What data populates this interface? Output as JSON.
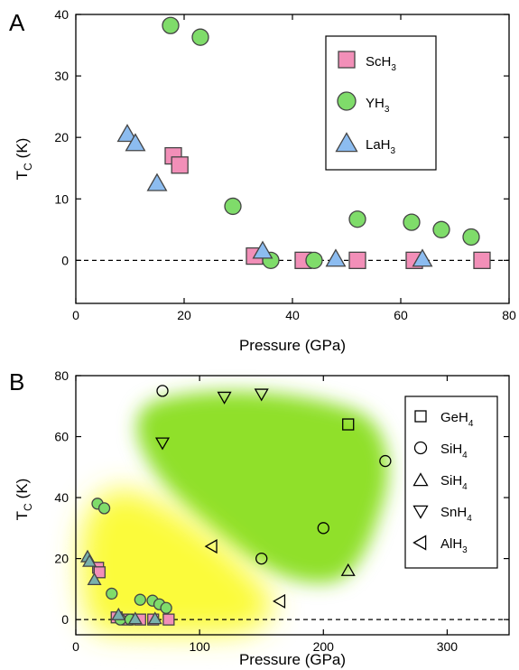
{
  "colors": {
    "sc": "#f28fb8",
    "y": "#7fdc6a",
    "la": "#8cbcf0",
    "la_b": "#79b1ac",
    "glow_green": "#90e02a",
    "glow_yellow": "#fbfb3a"
  },
  "chart_data": [
    {
      "panel": "A",
      "type": "scatter",
      "xlabel": "Pressure (GPa)",
      "ylabel_main": "T",
      "ylabel_sub": "C",
      "ylabel_unit": "(K)",
      "xlim": [
        0,
        80
      ],
      "ylim": [
        -7,
        40
      ],
      "xticks": [
        0,
        20,
        40,
        60,
        80
      ],
      "yticks": [
        0,
        10,
        20,
        30,
        40
      ],
      "reference_line": 0,
      "legend_position": "top-right",
      "series": [
        {
          "key": "sc",
          "name": "ScH",
          "sub": "3",
          "marker": "square",
          "color_key": "sc",
          "points": [
            [
              18,
              17
            ],
            [
              19.2,
              15.5
            ],
            [
              33,
              0.7
            ],
            [
              42,
              0
            ],
            [
              52,
              0
            ],
            [
              62.5,
              0
            ],
            [
              75,
              0
            ]
          ]
        },
        {
          "key": "y",
          "name": "YH",
          "sub": "3",
          "marker": "circle",
          "color_key": "y",
          "points": [
            [
              17.5,
              38.2
            ],
            [
              23,
              36.3
            ],
            [
              29,
              8.8
            ],
            [
              36,
              0
            ],
            [
              44,
              0
            ],
            [
              52,
              6.7
            ],
            [
              62,
              6.2
            ],
            [
              67.5,
              5
            ],
            [
              73,
              3.8
            ]
          ]
        },
        {
          "key": "la",
          "name": "LaH",
          "sub": "3",
          "marker": "triangle-up",
          "color_key": "la",
          "points": [
            [
              9.5,
              20.5
            ],
            [
              11,
              19
            ],
            [
              15,
              12.5
            ],
            [
              34.5,
              1.5
            ],
            [
              48,
              0.2
            ],
            [
              64,
              0.2
            ]
          ]
        }
      ]
    },
    {
      "panel": "B",
      "type": "scatter",
      "xlabel": "Pressure (GPa)",
      "ylabel_main": "T",
      "ylabel_sub": "C",
      "ylabel_unit": "(K)",
      "xlim": [
        0,
        350
      ],
      "ylim": [
        -5,
        80
      ],
      "xticks": [
        0,
        100,
        200,
        300
      ],
      "yticks": [
        0,
        20,
        40,
        60,
        80
      ],
      "reference_line": 0,
      "legend_position": "right",
      "series": [
        {
          "key": "ge",
          "name": "GeH",
          "sub": "4",
          "marker": "square",
          "filled": false,
          "points": [
            [
              220,
              64
            ]
          ]
        },
        {
          "key": "si_c",
          "name": "SiH",
          "sub": "4",
          "marker": "circle",
          "filled": false,
          "points": [
            [
              70,
              75
            ],
            [
              150,
              20
            ],
            [
              200,
              30
            ],
            [
              250,
              52
            ]
          ]
        },
        {
          "key": "si_t",
          "name": "SiH",
          "sub": "4",
          "marker": "triangle-up",
          "filled": false,
          "points": [
            [
              220,
              16
            ]
          ]
        },
        {
          "key": "sn",
          "name": "SnH",
          "sub": "4",
          "marker": "triangle-down",
          "filled": false,
          "points": [
            [
              70,
              58
            ],
            [
              120,
              73
            ],
            [
              150,
              74
            ]
          ]
        },
        {
          "key": "al",
          "name": "AlH",
          "sub": "3",
          "marker": "triangle-left",
          "filled": false,
          "points": [
            [
              110,
              24
            ],
            [
              165,
              6
            ]
          ]
        },
        {
          "key": "sc_b",
          "marker": "square",
          "filled": true,
          "color_key": "sc",
          "legend": false,
          "points": [
            [
              18,
              17
            ],
            [
              19.2,
              15.5
            ],
            [
              33,
              0.7
            ],
            [
              42,
              0
            ],
            [
              52,
              0
            ],
            [
              62.5,
              0
            ],
            [
              75,
              0
            ]
          ]
        },
        {
          "key": "y_b",
          "marker": "circle",
          "filled": true,
          "color_key": "y",
          "legend": false,
          "points": [
            [
              17.5,
              38
            ],
            [
              23,
              36.5
            ],
            [
              29,
              8.5
            ],
            [
              36,
              0
            ],
            [
              44,
              0
            ],
            [
              52,
              6.5
            ],
            [
              62,
              6.2
            ],
            [
              67.5,
              5
            ],
            [
              73,
              3.8
            ]
          ]
        },
        {
          "key": "la_b",
          "marker": "triangle-up",
          "filled": true,
          "color_key": "la_b",
          "legend": false,
          "points": [
            [
              9.5,
              20.5
            ],
            [
              11,
              19
            ],
            [
              15,
              13
            ],
            [
              34.5,
              1.5
            ],
            [
              48,
              0.2
            ],
            [
              64,
              0.2
            ]
          ]
        }
      ]
    }
  ]
}
